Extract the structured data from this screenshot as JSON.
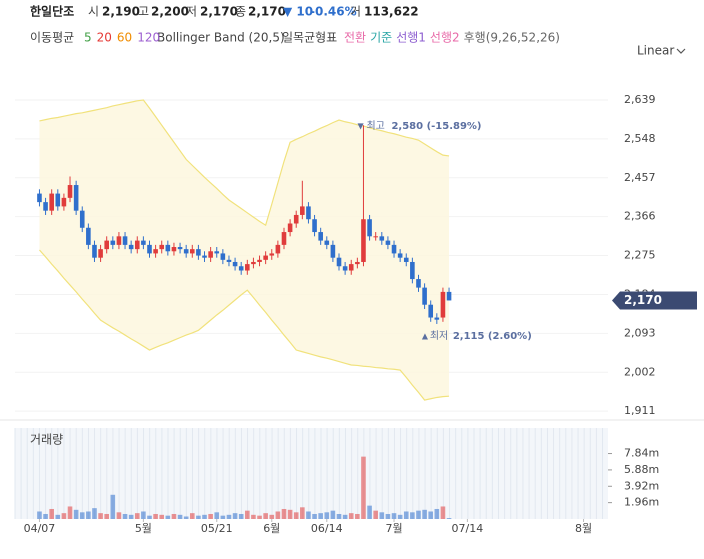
{
  "header": {
    "name": "한일단조",
    "open_label": "시",
    "open": "2,190",
    "high_label": "고",
    "high": "2,200",
    "low_label": "저",
    "low": "2,170",
    "close_label": "종",
    "close": "2,170",
    "change": "▼ 10",
    "change_pct": "-0.46%",
    "volume_label": "거",
    "volume": "113,622"
  },
  "indicators": {
    "ma_label": "이동평균",
    "ma_periods": [
      {
        "label": "5",
        "color": "#43a047"
      },
      {
        "label": "20",
        "color": "#e53935"
      },
      {
        "label": "60",
        "color": "#f08c00"
      },
      {
        "label": "120",
        "color": "#9c5fd0"
      }
    ],
    "bollinger": "Bollinger Band (20,5)",
    "ichimoku_label": "일목균형표",
    "ichimoku_parts": [
      {
        "label": "전환",
        "color": "#e86aa8"
      },
      {
        "label": "기준",
        "color": "#2aa6a6"
      },
      {
        "label": "선행1",
        "color": "#8e5fd0"
      },
      {
        "label": "선행2",
        "color": "#e86aa8"
      },
      {
        "label": "후행(9,26,52,26)",
        "color": "#666"
      }
    ],
    "scale": "Linear"
  },
  "chart_data": {
    "type": "candlestick",
    "up_color": "#e03c3c",
    "down_color": "#2f6fcc",
    "open": [
      2420,
      2400,
      2380,
      2420,
      2390,
      2410,
      2440,
      2380,
      2340,
      2300,
      2270,
      2290,
      2310,
      2300,
      2320,
      2300,
      2290,
      2310,
      2300,
      2280,
      2290,
      2300,
      2285,
      2295,
      2290,
      2280,
      2290,
      2275,
      2270,
      2285,
      2280,
      2265,
      2260,
      2250,
      2240,
      2255,
      2260,
      2265,
      2275,
      2280,
      2300,
      2330,
      2350,
      2370,
      2390,
      2360,
      2330,
      2310,
      2300,
      2270,
      2250,
      2240,
      2255,
      2260,
      2360,
      2320,
      2320,
      2310,
      2300,
      2280,
      2270,
      2260,
      2220,
      2200,
      2160,
      2130,
      2130,
      2190
    ],
    "high": [
      2430,
      2410,
      2430,
      2430,
      2420,
      2460,
      2450,
      2390,
      2350,
      2310,
      2300,
      2320,
      2320,
      2330,
      2330,
      2310,
      2320,
      2320,
      2310,
      2300,
      2310,
      2310,
      2305,
      2305,
      2300,
      2300,
      2300,
      2285,
      2295,
      2295,
      2290,
      2275,
      2270,
      2260,
      2265,
      2270,
      2275,
      2285,
      2290,
      2310,
      2340,
      2360,
      2380,
      2450,
      2400,
      2370,
      2340,
      2320,
      2310,
      2280,
      2260,
      2265,
      2270,
      2580,
      2370,
      2330,
      2330,
      2320,
      2310,
      2290,
      2280,
      2270,
      2230,
      2210,
      2170,
      2140,
      2200,
      2200
    ],
    "low": [
      2390,
      2370,
      2370,
      2380,
      2380,
      2400,
      2370,
      2330,
      2290,
      2260,
      2260,
      2280,
      2290,
      2290,
      2290,
      2280,
      2280,
      2290,
      2270,
      2270,
      2280,
      2275,
      2275,
      2280,
      2270,
      2270,
      2265,
      2260,
      2260,
      2270,
      2255,
      2250,
      2240,
      2230,
      2230,
      2245,
      2250,
      2255,
      2265,
      2270,
      2290,
      2320,
      2340,
      2360,
      2350,
      2320,
      2300,
      2290,
      2260,
      2240,
      2230,
      2230,
      2245,
      2250,
      2310,
      2310,
      2300,
      2290,
      2270,
      2260,
      2250,
      2210,
      2190,
      2150,
      2120,
      2115,
      2120,
      2170
    ],
    "close": [
      2400,
      2380,
      2420,
      2390,
      2410,
      2440,
      2380,
      2340,
      2300,
      2270,
      2290,
      2310,
      2300,
      2320,
      2300,
      2290,
      2310,
      2300,
      2280,
      2290,
      2300,
      2285,
      2295,
      2290,
      2280,
      2290,
      2275,
      2270,
      2285,
      2280,
      2265,
      2260,
      2250,
      2240,
      2255,
      2260,
      2265,
      2275,
      2280,
      2300,
      2330,
      2350,
      2370,
      2390,
      2360,
      2330,
      2310,
      2300,
      2270,
      2250,
      2240,
      2255,
      2260,
      2360,
      2320,
      2320,
      2310,
      2300,
      2280,
      2270,
      2260,
      2220,
      2200,
      2160,
      2130,
      2125,
      2190,
      2170
    ],
    "bollinger_upper": [
      2590,
      2593,
      2596,
      2598,
      2601,
      2604,
      2607,
      2609,
      2612,
      2615,
      2618,
      2621,
      2625,
      2628,
      2631,
      2634,
      2637,
      2639,
      2620,
      2600,
      2580,
      2560,
      2540,
      2520,
      2500,
      2486,
      2472,
      2458,
      2445,
      2432,
      2418,
      2405,
      2395,
      2385,
      2375,
      2365,
      2355,
      2346,
      2395,
      2445,
      2495,
      2540,
      2547,
      2553,
      2560,
      2566,
      2573,
      2579,
      2586,
      2592,
      2588,
      2585,
      2581,
      2578,
      2574,
      2570,
      2567,
      2563,
      2560,
      2556,
      2552,
      2549,
      2545,
      2536,
      2527,
      2518,
      2510,
      2508
    ],
    "bollinger_lower": [
      2288,
      2272,
      2255,
      2239,
      2222,
      2206,
      2190,
      2173,
      2157,
      2140,
      2124,
      2115,
      2106,
      2098,
      2089,
      2080,
      2072,
      2063,
      2054,
      2060,
      2066,
      2071,
      2077,
      2083,
      2089,
      2094,
      2100,
      2112,
      2124,
      2136,
      2147,
      2159,
      2171,
      2183,
      2194,
      2177,
      2159,
      2142,
      2124,
      2107,
      2089,
      2072,
      2054,
      2050,
      2046,
      2042,
      2038,
      2035,
      2031,
      2027,
      2023,
      2019,
      2018,
      2016,
      2015,
      2013,
      2012,
      2010,
      2009,
      2007,
      1990,
      1972,
      1955,
      1937,
      1940,
      1943,
      1945,
      1946
    ],
    "volume": [
      900000,
      600000,
      1200000,
      500000,
      700000,
      1500000,
      1100000,
      800000,
      900000,
      1300000,
      700000,
      600000,
      2900000,
      800000,
      600000,
      500000,
      700000,
      900000,
      400000,
      600000,
      500000,
      400000,
      600000,
      500000,
      300000,
      700000,
      400000,
      500000,
      600000,
      800000,
      400000,
      500000,
      700000,
      600000,
      1000000,
      500000,
      400000,
      700000,
      500000,
      900000,
      1200000,
      1100000,
      800000,
      1400000,
      900000,
      600000,
      700000,
      800000,
      1000000,
      600000,
      500000,
      700000,
      600000,
      7470000,
      1600000,
      1000000,
      800000,
      600000,
      700000,
      500000,
      900000,
      800000,
      1000000,
      1100000,
      900000,
      1200000,
      1500000,
      113622
    ],
    "volume_title": "거래량",
    "xlim": [
      -4,
      93
    ],
    "xticks": [
      {
        "value": 0,
        "label": "04/07"
      },
      {
        "value": 17,
        "label": "5월"
      },
      {
        "value": 29,
        "label": "05/21"
      },
      {
        "value": 38,
        "label": "6월"
      },
      {
        "value": 47,
        "label": "06/14"
      },
      {
        "value": 58,
        "label": "7월"
      },
      {
        "value": 70,
        "label": "07/14"
      },
      {
        "value": 89,
        "label": "8월"
      }
    ],
    "ylim": [
      1902,
      2667
    ],
    "yticks": [
      {
        "value": 1911,
        "label": "1,911"
      },
      {
        "value": 2002,
        "label": "2,002"
      },
      {
        "value": 2093,
        "label": "2,093"
      },
      {
        "value": 2184,
        "label": "2,184"
      },
      {
        "value": 2275,
        "label": "2,275"
      },
      {
        "value": 2366,
        "label": "2,366"
      },
      {
        "value": 2457,
        "label": "2,457"
      },
      {
        "value": 2548,
        "label": "2,548"
      },
      {
        "value": 2639,
        "label": "2,639"
      }
    ],
    "vlim": [
      0,
      10900000
    ],
    "vticks": [
      {
        "value": 1960000,
        "label": "1.96m"
      },
      {
        "value": 3920000,
        "label": "3.92m"
      },
      {
        "value": 5880000,
        "label": "5.88m"
      },
      {
        "value": 7840000,
        "label": "7.84m"
      }
    ],
    "last_price": {
      "value": 2170,
      "label": "2,170"
    },
    "annotations": [
      {
        "label": "최고",
        "text": "2,580 (-15.89%)"
      },
      {
        "label": "최저",
        "text": "2,115 (2.60%)"
      }
    ]
  }
}
